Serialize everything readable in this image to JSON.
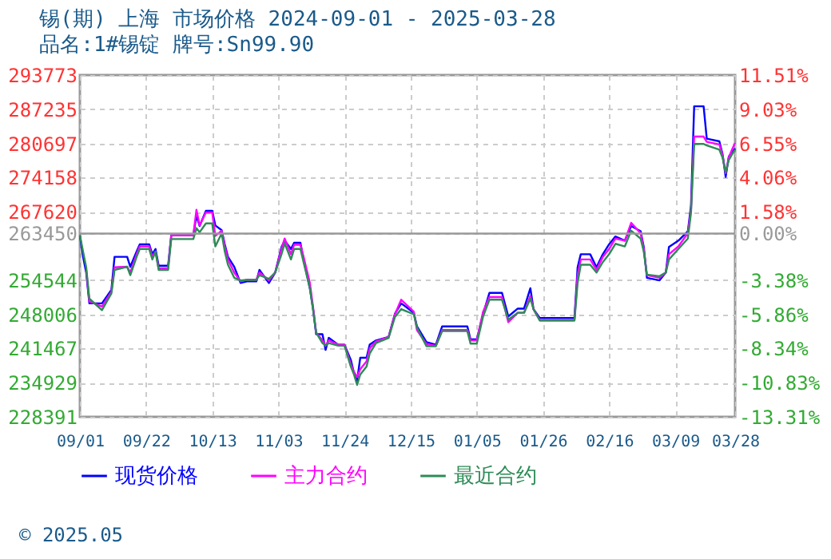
{
  "chart_data": {
    "type": "line",
    "title": "锡(期) 上海 市场价格 2024-09-01 - 2025-03-28",
    "subtitle": "品名:1#锡锭 牌号:Sn99.90",
    "annotations": [
      "© 2025.05"
    ],
    "x": [
      "2024-09-01",
      "2024-09-02",
      "2024-09-03",
      "2024-09-04",
      "2024-09-08",
      "2024-09-11",
      "2024-09-12",
      "2024-09-16",
      "2024-09-17",
      "2024-09-19",
      "2024-09-20",
      "2024-09-23",
      "2024-09-24",
      "2024-09-25",
      "2024-09-26",
      "2024-09-29",
      "2024-09-30",
      "2024-10-07",
      "2024-10-08",
      "2024-10-09",
      "2024-10-11",
      "2024-10-13",
      "2024-10-14",
      "2024-10-16",
      "2024-10-17",
      "2024-10-18",
      "2024-10-20",
      "2024-10-22",
      "2024-10-24",
      "2024-10-27",
      "2024-10-28",
      "2024-10-31",
      "2024-11-02",
      "2024-11-04",
      "2024-11-05",
      "2024-11-07",
      "2024-11-08",
      "2024-11-10",
      "2024-11-11",
      "2024-11-13",
      "2024-11-14",
      "2024-11-15",
      "2024-11-17",
      "2024-11-18",
      "2024-11-19",
      "2024-11-22",
      "2024-11-24",
      "2024-11-26",
      "2024-11-27",
      "2024-11-28",
      "2024-11-29",
      "2024-12-01",
      "2024-12-02",
      "2024-12-04",
      "2024-12-08",
      "2024-12-10",
      "2024-12-12",
      "2024-12-16",
      "2024-12-17",
      "2024-12-20",
      "2024-12-23",
      "2024-12-25",
      "2025-01-02",
      "2025-01-03",
      "2025-01-05",
      "2025-01-07",
      "2025-01-09",
      "2025-01-13",
      "2025-01-15",
      "2025-01-18",
      "2025-01-20",
      "2025-01-22",
      "2025-01-23",
      "2025-01-25",
      "2025-02-05",
      "2025-02-06",
      "2025-02-07",
      "2025-02-10",
      "2025-02-12",
      "2025-02-14",
      "2025-02-16",
      "2025-02-18",
      "2025-02-21",
      "2025-02-23",
      "2025-02-26",
      "2025-02-27",
      "2025-02-28",
      "2025-03-04",
      "2025-03-06",
      "2025-03-07",
      "2025-03-10",
      "2025-03-13",
      "2025-03-14",
      "2025-03-15",
      "2025-03-18",
      "2025-03-19",
      "2025-03-23",
      "2025-03-24",
      "2025-03-25",
      "2025-03-26",
      "2025-03-27",
      "2025-03-28"
    ],
    "series": [
      {
        "name": "现货价格",
        "color": "#0000ff",
        "values": [
          263100,
          259000,
          256000,
          250100,
          250100,
          252700,
          259000,
          259000,
          257100,
          260000,
          261400,
          261400,
          259500,
          260500,
          257300,
          257300,
          263100,
          263100,
          266900,
          264900,
          267800,
          267800,
          265000,
          264100,
          261400,
          259000,
          257100,
          254000,
          254300,
          254300,
          256500,
          254000,
          256000,
          260900,
          262100,
          260500,
          261700,
          261700,
          258500,
          253000,
          249100,
          244200,
          244200,
          241200,
          243500,
          242200,
          242200,
          239300,
          236800,
          235300,
          239700,
          239700,
          242200,
          243000,
          243700,
          248100,
          250100,
          248300,
          245700,
          242700,
          242200,
          245700,
          245700,
          243200,
          243200,
          248100,
          252100,
          252100,
          247600,
          249100,
          249100,
          253000,
          249000,
          247300,
          247300,
          257000,
          259500,
          259500,
          257000,
          259500,
          261400,
          262900,
          262100,
          264900,
          263900,
          260900,
          255000,
          254500,
          256000,
          260900,
          262100,
          263900,
          268800,
          287800,
          287800,
          281600,
          281100,
          278700,
          274300,
          278200,
          279000,
          279700
        ]
      },
      {
        "name": "主力合约",
        "color": "#ff00ff",
        "values": [
          null,
          null,
          256500,
          250500,
          249500,
          252300,
          257000,
          257100,
          256000,
          259500,
          261000,
          261000,
          259000,
          260000,
          256800,
          256800,
          263100,
          263100,
          268000,
          265000,
          267500,
          267500,
          263000,
          264000,
          261000,
          258500,
          256000,
          254300,
          254600,
          254600,
          256000,
          254500,
          256000,
          260500,
          262500,
          259500,
          261300,
          261300,
          259000,
          254000,
          249500,
          244500,
          243000,
          242000,
          243000,
          242200,
          242200,
          238500,
          237000,
          236000,
          237500,
          239000,
          241500,
          242800,
          243700,
          248000,
          250800,
          248500,
          245000,
          242300,
          242000,
          245000,
          245000,
          243000,
          243000,
          248500,
          251300,
          251300,
          246500,
          248300,
          248300,
          251500,
          249000,
          246900,
          246900,
          255500,
          258500,
          258500,
          256500,
          259000,
          260500,
          262500,
          262100,
          265500,
          263500,
          260500,
          255500,
          255000,
          256000,
          259500,
          261000,
          263500,
          268000,
          282000,
          282000,
          281000,
          280500,
          278500,
          275000,
          278000,
          279500,
          280800
        ]
      },
      {
        "name": "最近合约",
        "color": "#2e8b57",
        "values": [
          263100,
          260000,
          257000,
          251000,
          248800,
          252000,
          256500,
          257100,
          255500,
          259000,
          260500,
          260500,
          258500,
          260000,
          256500,
          256500,
          262400,
          262400,
          264500,
          263700,
          265400,
          265400,
          261000,
          263500,
          260000,
          257500,
          255000,
          254500,
          254600,
          254600,
          255500,
          254800,
          256000,
          259500,
          261600,
          258500,
          260500,
          260500,
          258000,
          253000,
          249000,
          244500,
          242500,
          242000,
          242500,
          242000,
          242000,
          238000,
          236500,
          234500,
          236500,
          238000,
          240500,
          242500,
          243500,
          247500,
          249000,
          248000,
          245500,
          241900,
          241900,
          244800,
          244800,
          242400,
          242400,
          247600,
          250800,
          250800,
          247000,
          248300,
          248300,
          251000,
          249000,
          246800,
          246800,
          254000,
          257500,
          257500,
          256000,
          258000,
          259500,
          261500,
          261000,
          264000,
          262500,
          260000,
          255600,
          255300,
          256000,
          258500,
          260500,
          262500,
          267500,
          280600,
          280600,
          280300,
          279500,
          278000,
          275200,
          277500,
          278600,
          279500
        ]
      }
    ],
    "xlim": [
      "2024-09-01",
      "2025-03-28"
    ],
    "xticks": [
      {
        "value": "2024-09-01",
        "label": "09/01"
      },
      {
        "value": "2024-09-22",
        "label": "09/22"
      },
      {
        "value": "2024-10-13",
        "label": "10/13"
      },
      {
        "value": "2024-11-03",
        "label": "11/03"
      },
      {
        "value": "2024-11-24",
        "label": "11/24"
      },
      {
        "value": "2024-12-15",
        "label": "12/15"
      },
      {
        "value": "2025-01-05",
        "label": "01/05"
      },
      {
        "value": "2025-01-26",
        "label": "01/26"
      },
      {
        "value": "2025-02-16",
        "label": "02/16"
      },
      {
        "value": "2025-03-09",
        "label": "03/09"
      },
      {
        "value": "2025-03-28",
        "label": "03/28"
      }
    ],
    "ylim": [
      228391,
      293773
    ],
    "yticks": [
      228391,
      234929,
      241467,
      248006,
      254544,
      263450,
      267620,
      274158,
      280697,
      287235,
      293773
    ],
    "y2lim": [
      -13.31,
      11.51
    ],
    "y2ticks": [
      {
        "value": -13.31,
        "label": "-13.31%"
      },
      {
        "value": -10.83,
        "label": "-10.83%"
      },
      {
        "value": -8.34,
        "label": "-8.34%"
      },
      {
        "value": -5.86,
        "label": "-5.86%"
      },
      {
        "value": -3.38,
        "label": "-3.38%"
      },
      {
        "value": 0,
        "label": "0.00%"
      },
      {
        "value": 1.58,
        "label": "1.58%"
      },
      {
        "value": 4.06,
        "label": "4.06%"
      },
      {
        "value": 6.55,
        "label": "6.55%"
      },
      {
        "value": 9.03,
        "label": "9.03%"
      },
      {
        "value": 11.51,
        "label": "11.51%"
      }
    ],
    "ref_lines": [
      {
        "axis": "y2",
        "value": 0,
        "color": "#999999"
      }
    ],
    "grid": true,
    "legend": "bottom"
  }
}
